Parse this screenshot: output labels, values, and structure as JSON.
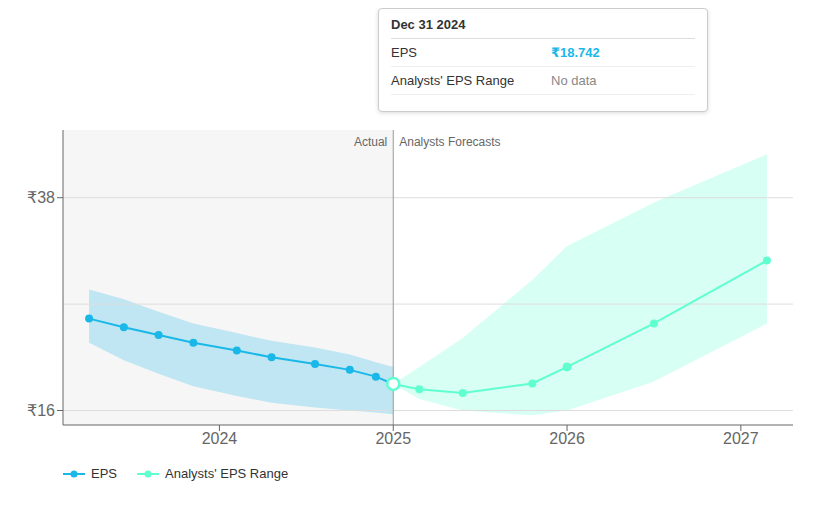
{
  "chart_data": {
    "type": "line",
    "series": [
      {
        "name": "EPS",
        "color": "#1ab8e8",
        "marker": "o",
        "x": [
          2023.25,
          2023.45,
          2023.65,
          2023.85,
          2024.1,
          2024.3,
          2024.55,
          2024.75,
          2024.9,
          2025.0
        ],
        "values": [
          25.5,
          24.6,
          23.8,
          23.0,
          22.2,
          21.5,
          20.8,
          20.2,
          19.5,
          18.742
        ],
        "band_upper": [
          28.5,
          27.5,
          26.2,
          25.0,
          24.0,
          23.2,
          22.5,
          21.8,
          21.0,
          20.5
        ],
        "band_lower": [
          23.0,
          21.2,
          19.8,
          18.5,
          17.5,
          16.8,
          16.3,
          16.0,
          15.8,
          15.6
        ]
      },
      {
        "name": "Analysts' EPS Range",
        "color": "#5fffd0",
        "marker": "o",
        "x": [
          2025.0,
          2025.15,
          2025.4,
          2025.8,
          2026.0,
          2026.5,
          2027.15
        ],
        "values": [
          18.742,
          18.2,
          17.8,
          18.8,
          20.5,
          25.0,
          31.5
        ],
        "band_upper": [
          18.742,
          20.5,
          23.5,
          29.5,
          33.0,
          37.5,
          42.5
        ],
        "band_lower": [
          18.742,
          17.2,
          16.0,
          15.5,
          16.0,
          19.0,
          25.0
        ]
      }
    ],
    "xlim": [
      2023.1,
      2027.3
    ],
    "xticks": [
      2024,
      2025,
      2026,
      2027
    ],
    "ylim": [
      14.5,
      45.0
    ],
    "yticks": [
      {
        "value": 16,
        "label": "₹16"
      },
      {
        "value": 38,
        "label": "₹38"
      }
    ],
    "hlines": [
      16,
      27,
      38
    ],
    "divider_x": 2025.0,
    "annotations": [
      "Actual",
      "Analysts Forecasts"
    ],
    "highlight_points": [
      {
        "x": 2025.0,
        "y": 18.742,
        "marker": "open_circle"
      },
      {
        "x": 2026.0,
        "y": 20.5,
        "marker": "o"
      }
    ],
    "tooltip": {
      "title": "Dec 31 2024",
      "rows": [
        {
          "label": "EPS",
          "value": "₹18.742"
        },
        {
          "label": "Analysts' EPS Range",
          "value": "No data"
        }
      ]
    },
    "legend": "lower left"
  }
}
